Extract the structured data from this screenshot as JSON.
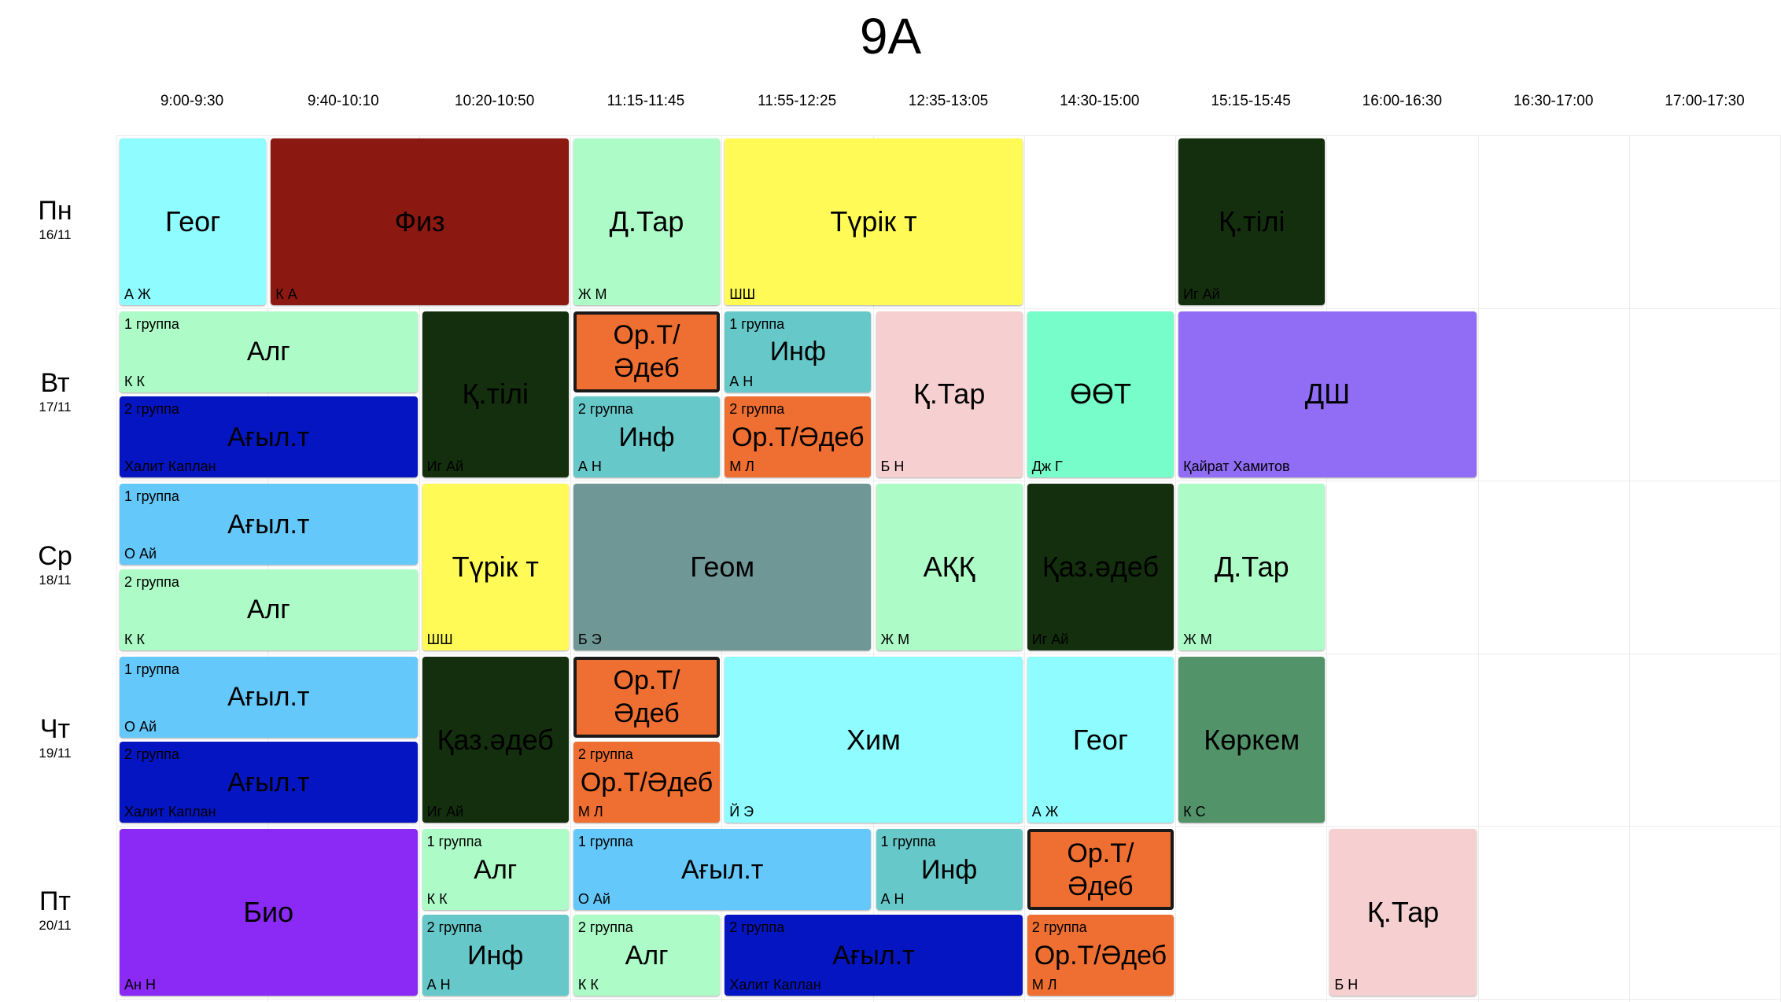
{
  "title": "9A",
  "time_slots": [
    "9:00-9:30",
    "9:40-10:10",
    "10:20-10:50",
    "11:15-11:45",
    "11:55-12:25",
    "12:35-13:05",
    "14:30-15:00",
    "15:15-15:45",
    "16:00-16:30",
    "16:30-17:00",
    "17:00-17:30"
  ],
  "days": [
    {
      "name": "Пн",
      "date": "16/11"
    },
    {
      "name": "Вт",
      "date": "17/11"
    },
    {
      "name": "Ср",
      "date": "18/11"
    },
    {
      "name": "Чт",
      "date": "19/11"
    },
    {
      "name": "Пт",
      "date": "20/11"
    }
  ],
  "colors": {
    "cyan_light": "#8ffcff",
    "dark_red": "#8c1812",
    "mint": "#adfbc7",
    "yellow": "#fffa55",
    "dark_green": "#132f0d",
    "orange": "#ef6f32",
    "teal": "#66c8c9",
    "pink": "#f6d0d0",
    "aqua_green": "#77fdc9",
    "lavender": "#916cf5",
    "navy": "#0615c2",
    "sky": "#65c8fa",
    "slate": "#6f9796",
    "sea_green": "#52936a",
    "purple": "#8a2af4"
  },
  "lessons": [
    {
      "day": 0,
      "start": 0,
      "span": 1,
      "half": "full",
      "subject": "Геог",
      "teacher": "А Ж",
      "group": "",
      "color": "#8ffcff",
      "text_color": "#000000",
      "bordered": false
    },
    {
      "day": 0,
      "start": 1,
      "span": 2,
      "half": "full",
      "subject": "Физ",
      "teacher": "К А",
      "group": "",
      "color": "#8c1812",
      "text_color": "#000000",
      "bordered": false
    },
    {
      "day": 0,
      "start": 3,
      "span": 1,
      "half": "full",
      "subject": "Д.Тар",
      "teacher": "Ж М",
      "group": "",
      "color": "#adfbc7",
      "text_color": "#000000",
      "bordered": false
    },
    {
      "day": 0,
      "start": 4,
      "span": 2,
      "half": "full",
      "subject": "Түрік т",
      "teacher": "ШШ",
      "group": "",
      "color": "#fffa55",
      "text_color": "#000000",
      "bordered": false
    },
    {
      "day": 0,
      "start": 7,
      "span": 1,
      "half": "full",
      "subject": "Қ.тілі",
      "teacher": "Иг Ай",
      "group": "",
      "color": "#132f0d",
      "text_color": "#000000",
      "bordered": false
    },
    {
      "day": 1,
      "start": 0,
      "span": 2,
      "half": "top",
      "subject": "Алг",
      "teacher": "К К",
      "group": "1 группа",
      "color": "#adfbc7",
      "text_color": "#000000",
      "bordered": false
    },
    {
      "day": 1,
      "start": 0,
      "span": 2,
      "half": "bottom",
      "subject": "Ағыл.т",
      "teacher": "Халит Каплан",
      "group": "2 группа",
      "color": "#0615c2",
      "text_color": "#000000",
      "bordered": false
    },
    {
      "day": 1,
      "start": 2,
      "span": 1,
      "half": "full",
      "subject": "Қ.тілі",
      "teacher": "Иг Ай",
      "group": "",
      "color": "#132f0d",
      "text_color": "#000000",
      "bordered": false
    },
    {
      "day": 1,
      "start": 3,
      "span": 1,
      "half": "top",
      "subject": "Ор.Т/ Әдеб",
      "teacher": "",
      "group": "",
      "color": "#ef6f32",
      "text_color": "#000000",
      "bordered": true
    },
    {
      "day": 1,
      "start": 3,
      "span": 1,
      "half": "bottom",
      "subject": "Инф",
      "teacher": "А Н",
      "group": "2 группа",
      "color": "#66c8c9",
      "text_color": "#000000",
      "bordered": false
    },
    {
      "day": 1,
      "start": 4,
      "span": 1,
      "half": "top",
      "subject": "Инф",
      "teacher": "А Н",
      "group": "1 группа",
      "color": "#66c8c9",
      "text_color": "#000000",
      "bordered": false
    },
    {
      "day": 1,
      "start": 4,
      "span": 1,
      "half": "bottom",
      "subject": "Ор.Т/Әдеб",
      "teacher": "М Л",
      "group": "2 группа",
      "color": "#ef6f32",
      "text_color": "#000000",
      "bordered": false
    },
    {
      "day": 1,
      "start": 5,
      "span": 1,
      "half": "full",
      "subject": "Қ.Тар",
      "teacher": "Б Н",
      "group": "",
      "color": "#f6d0d0",
      "text_color": "#000000",
      "bordered": false
    },
    {
      "day": 1,
      "start": 6,
      "span": 1,
      "half": "full",
      "subject": "ӨӨТ",
      "teacher": "Дж Г",
      "group": "",
      "color": "#77fdc9",
      "text_color": "#000000",
      "bordered": false
    },
    {
      "day": 1,
      "start": 7,
      "span": 2,
      "half": "full",
      "subject": "ДШ",
      "teacher": "Қайрат Хамитов",
      "group": "",
      "color": "#916cf5",
      "text_color": "#000000",
      "bordered": false
    },
    {
      "day": 2,
      "start": 0,
      "span": 2,
      "half": "top",
      "subject": "Ағыл.т",
      "teacher": "О Ай",
      "group": "1 группа",
      "color": "#65c8fa",
      "text_color": "#000000",
      "bordered": false
    },
    {
      "day": 2,
      "start": 0,
      "span": 2,
      "half": "bottom",
      "subject": "Алг",
      "teacher": "К К",
      "group": "2 группа",
      "color": "#adfbc7",
      "text_color": "#000000",
      "bordered": false
    },
    {
      "day": 2,
      "start": 2,
      "span": 1,
      "half": "full",
      "subject": "Түрік т",
      "teacher": "ШШ",
      "group": "",
      "color": "#fffa55",
      "text_color": "#000000",
      "bordered": false
    },
    {
      "day": 2,
      "start": 3,
      "span": 2,
      "half": "full",
      "subject": "Геом",
      "teacher": "Б Э",
      "group": "",
      "color": "#6f9796",
      "text_color": "#000000",
      "bordered": false
    },
    {
      "day": 2,
      "start": 5,
      "span": 1,
      "half": "full",
      "subject": "АҚҚ",
      "teacher": "Ж М",
      "group": "",
      "color": "#adfbc7",
      "text_color": "#000000",
      "bordered": false
    },
    {
      "day": 2,
      "start": 6,
      "span": 1,
      "half": "full",
      "subject": "Қаз.әдеб",
      "teacher": "Иг Ай",
      "group": "",
      "color": "#132f0d",
      "text_color": "#000000",
      "bordered": false
    },
    {
      "day": 2,
      "start": 7,
      "span": 1,
      "half": "full",
      "subject": "Д.Тар",
      "teacher": "Ж М",
      "group": "",
      "color": "#adfbc7",
      "text_color": "#000000",
      "bordered": false
    },
    {
      "day": 3,
      "start": 0,
      "span": 2,
      "half": "top",
      "subject": "Ағыл.т",
      "teacher": "О Ай",
      "group": "1 группа",
      "color": "#65c8fa",
      "text_color": "#000000",
      "bordered": false
    },
    {
      "day": 3,
      "start": 0,
      "span": 2,
      "half": "bottom",
      "subject": "Ағыл.т",
      "teacher": "Халит Каплан",
      "group": "2 группа",
      "color": "#0615c2",
      "text_color": "#000000",
      "bordered": false
    },
    {
      "day": 3,
      "start": 2,
      "span": 1,
      "half": "full",
      "subject": "Қаз.әдеб",
      "teacher": "Иг Ай",
      "group": "",
      "color": "#132f0d",
      "text_color": "#000000",
      "bordered": false
    },
    {
      "day": 3,
      "start": 3,
      "span": 1,
      "half": "top",
      "subject": "Ор.Т/ Әдеб",
      "teacher": "",
      "group": "",
      "color": "#ef6f32",
      "text_color": "#000000",
      "bordered": true
    },
    {
      "day": 3,
      "start": 3,
      "span": 1,
      "half": "bottom",
      "subject": "Ор.Т/Әдеб",
      "teacher": "М Л",
      "group": "2 группа",
      "color": "#ef6f32",
      "text_color": "#000000",
      "bordered": false
    },
    {
      "day": 3,
      "start": 4,
      "span": 2,
      "half": "full",
      "subject": "Хим",
      "teacher": "Й Э",
      "group": "",
      "color": "#8ffcff",
      "text_color": "#000000",
      "bordered": false
    },
    {
      "day": 3,
      "start": 6,
      "span": 1,
      "half": "full",
      "subject": "Геог",
      "teacher": "А Ж",
      "group": "",
      "color": "#8ffcff",
      "text_color": "#000000",
      "bordered": false
    },
    {
      "day": 3,
      "start": 7,
      "span": 1,
      "half": "full",
      "subject": "Көркем",
      "teacher": "К С",
      "group": "",
      "color": "#52936a",
      "text_color": "#000000",
      "bordered": false
    },
    {
      "day": 4,
      "start": 0,
      "span": 2,
      "half": "full",
      "subject": "Био",
      "teacher": "Ан Н",
      "group": "",
      "color": "#8a2af4",
      "text_color": "#000000",
      "bordered": false
    },
    {
      "day": 4,
      "start": 2,
      "span": 1,
      "half": "top",
      "subject": "Алг",
      "teacher": "К К",
      "group": "1 группа",
      "color": "#adfbc7",
      "text_color": "#000000",
      "bordered": false
    },
    {
      "day": 4,
      "start": 2,
      "span": 1,
      "half": "bottom",
      "subject": "Инф",
      "teacher": "А Н",
      "group": "2 группа",
      "color": "#66c8c9",
      "text_color": "#000000",
      "bordered": false
    },
    {
      "day": 4,
      "start": 3,
      "span": 2,
      "half": "top",
      "subject": "Ағыл.т",
      "teacher": "О Ай",
      "group": "1 группа",
      "color": "#65c8fa",
      "text_color": "#000000",
      "bordered": false
    },
    {
      "day": 4,
      "start": 3,
      "span": 1,
      "half": "bottom",
      "subject": "Алг",
      "teacher": "К К",
      "group": "2 группа",
      "color": "#adfbc7",
      "text_color": "#000000",
      "bordered": false
    },
    {
      "day": 4,
      "start": 4,
      "span": 2,
      "half": "bottom",
      "subject": "Ағыл.т",
      "teacher": "Халит Каплан",
      "group": "2 группа",
      "color": "#0615c2",
      "text_color": "#000000",
      "bordered": false
    },
    {
      "day": 4,
      "start": 5,
      "span": 1,
      "half": "top",
      "subject": "Инф",
      "teacher": "А Н",
      "group": "1 группа",
      "color": "#66c8c9",
      "text_color": "#000000",
      "bordered": false
    },
    {
      "day": 4,
      "start": 6,
      "span": 1,
      "half": "top",
      "subject": "Ор.Т/ Әдеб",
      "teacher": "",
      "group": "",
      "color": "#ef6f32",
      "text_color": "#000000",
      "bordered": true
    },
    {
      "day": 4,
      "start": 6,
      "span": 1,
      "half": "bottom",
      "subject": "Ор.Т/Әдеб",
      "teacher": "М Л",
      "group": "2 группа",
      "color": "#ef6f32",
      "text_color": "#000000",
      "bordered": false
    },
    {
      "day": 4,
      "start": 8,
      "span": 1,
      "half": "full",
      "subject": "Қ.Тар",
      "teacher": "Б Н",
      "group": "",
      "color": "#f6d0d0",
      "text_color": "#000000",
      "bordered": false
    }
  ]
}
